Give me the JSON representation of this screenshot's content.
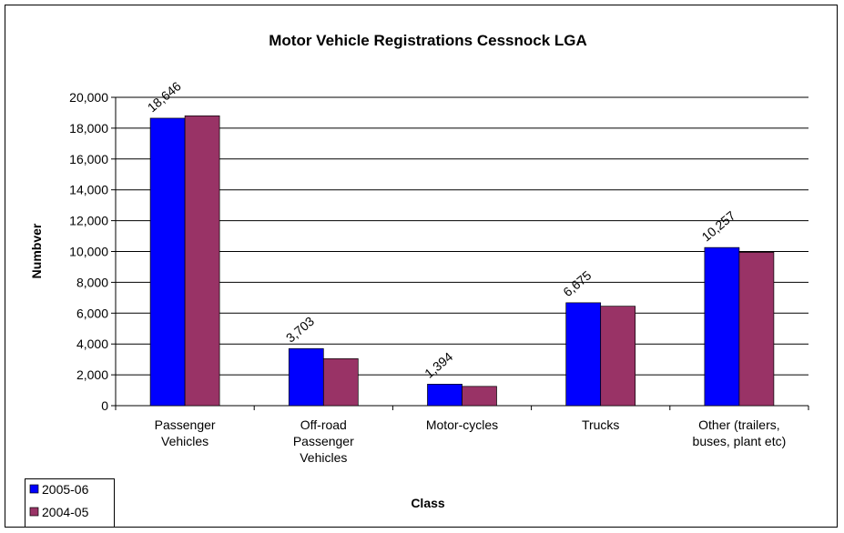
{
  "chart_data": {
    "type": "bar",
    "title": "Motor Vehicle Registrations Cessnock LGA",
    "x_label": "Class",
    "y_label": "Numbver",
    "categories": [
      "Passenger Vehicles",
      "Off-road Passenger Vehicles",
      "Motor-cycles",
      "Trucks",
      "Other (trailers, buses, plant etc)"
    ],
    "series": [
      {
        "name": "2005-06",
        "color": "#0000ff",
        "values": [
          18646,
          3703,
          1394,
          6675,
          10257
        ],
        "value_labels": [
          "18,646",
          "3,703",
          "1,394",
          "6,675",
          "10,257"
        ]
      },
      {
        "name": "2004-05",
        "color": "#993366",
        "values": [
          18800,
          3050,
          1250,
          6450,
          9950
        ]
      }
    ],
    "ylim": [
      0,
      20000
    ],
    "yticks": [
      0,
      {
        "value": 2000,
        "label": "2,000"
      },
      {
        "value": 4000,
        "label": "4,000"
      },
      {
        "value": 6000,
        "label": "6,000"
      },
      {
        "value": 8000,
        "label": "8,000"
      },
      {
        "value": 10000,
        "label": "10,000"
      },
      {
        "value": 12000,
        "label": "12,000"
      },
      {
        "value": 14000,
        "label": "14,000"
      },
      {
        "value": 16000,
        "label": "16,000"
      },
      {
        "value": 18000,
        "label": "18,000"
      },
      {
        "value": 20000,
        "label": "20,000"
      }
    ],
    "grid": true,
    "legend": "bottom-left"
  }
}
